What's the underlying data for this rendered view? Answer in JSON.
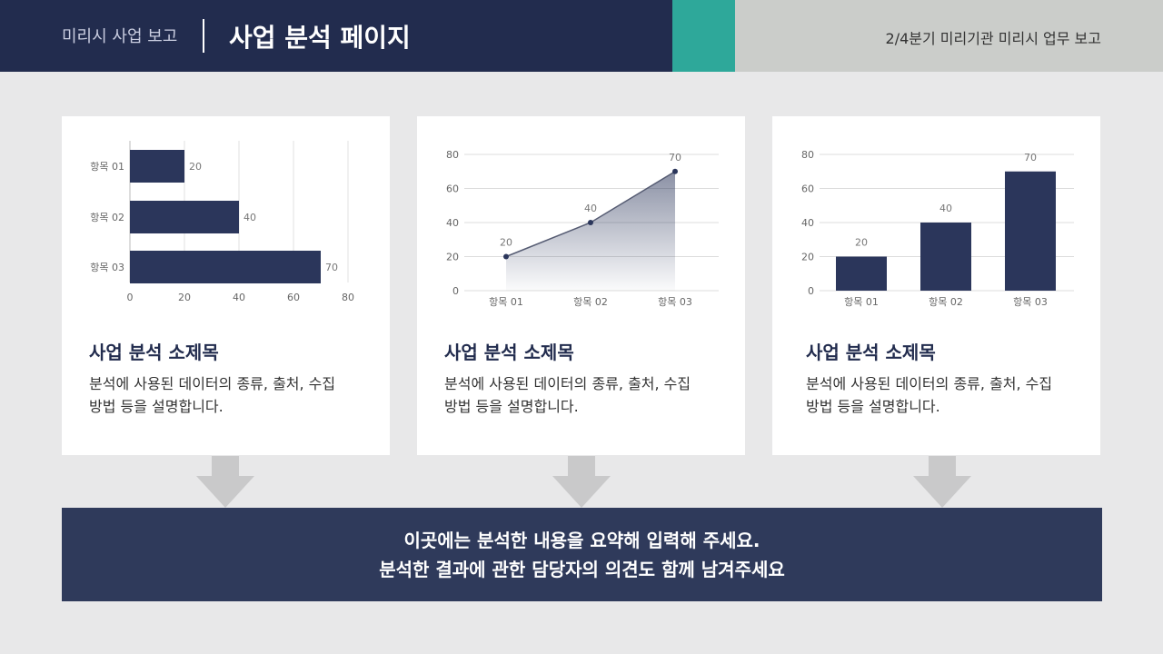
{
  "header": {
    "subtitle": "미리시 사업 보고",
    "title": "사업 분석 페이지",
    "info": "2/4분기 미리기관 미리시 업무 보고"
  },
  "colors": {
    "navy": "#2b365b",
    "teal": "#2ea89a"
  },
  "cards": [
    {
      "title": "사업 분석 소제목",
      "desc_line1": "분석에 사용된 데이터의 종류, 출처, 수집",
      "desc_line2": "방법 등을 설명합니다."
    },
    {
      "title": "사업 분석 소제목",
      "desc_line1": "분석에 사용된 데이터의 종류, 출처, 수집",
      "desc_line2": "방법 등을 설명합니다."
    },
    {
      "title": "사업 분석 소제목",
      "desc_line1": "분석에 사용된 데이터의 종류, 출처, 수집",
      "desc_line2": "방법 등을 설명합니다."
    }
  ],
  "summary": {
    "line1": "이곳에는 분석한 내용을 요약해 입력해 주세요.",
    "line2": "분석한 결과에 관한 담당자의 의견도 함께 남겨주세요"
  },
  "chart_data": [
    {
      "type": "bar",
      "orientation": "horizontal",
      "categories": [
        "항목 01",
        "항목 02",
        "항목 03"
      ],
      "values": [
        20,
        40,
        70
      ],
      "xlim": [
        0,
        80
      ],
      "ticks": [
        0,
        20,
        40,
        60,
        80
      ],
      "grid": true,
      "data_labels": true
    },
    {
      "type": "area",
      "categories": [
        "항목 01",
        "항목 02",
        "항목 03"
      ],
      "values": [
        20,
        40,
        70
      ],
      "ylim": [
        0,
        80
      ],
      "ticks": [
        0,
        20,
        40,
        60,
        80
      ],
      "grid": true,
      "data_labels": true
    },
    {
      "type": "bar",
      "orientation": "vertical",
      "categories": [
        "항목 01",
        "항목 02",
        "항목 03"
      ],
      "values": [
        20,
        40,
        70
      ],
      "ylim": [
        0,
        80
      ],
      "ticks": [
        0,
        20,
        40,
        60,
        80
      ],
      "grid": true,
      "data_labels": true
    }
  ]
}
